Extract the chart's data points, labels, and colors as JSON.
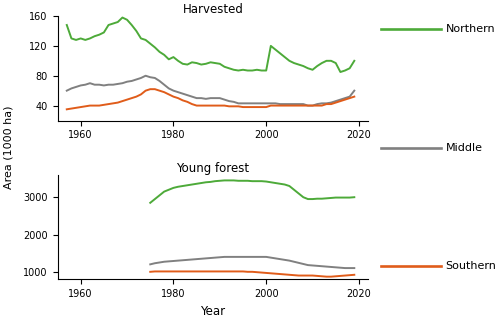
{
  "title_top": "Harvested",
  "title_bottom": "Young forest",
  "ylabel": "Area (1000 ha)",
  "xlabel": "Year",
  "legend_labels": [
    "Northern",
    "Middle",
    "Southern"
  ],
  "colors": [
    "#4daa39",
    "#808080",
    "#e05c1a"
  ],
  "linewidth": 1.4,
  "harvested_years": [
    1957,
    1958,
    1959,
    1960,
    1961,
    1962,
    1963,
    1964,
    1965,
    1966,
    1967,
    1968,
    1969,
    1970,
    1971,
    1972,
    1973,
    1974,
    1975,
    1976,
    1977,
    1978,
    1979,
    1980,
    1981,
    1982,
    1983,
    1984,
    1985,
    1986,
    1987,
    1988,
    1989,
    1990,
    1991,
    1992,
    1993,
    1994,
    1995,
    1996,
    1997,
    1998,
    1999,
    2000,
    2001,
    2002,
    2003,
    2004,
    2005,
    2006,
    2007,
    2008,
    2009,
    2010,
    2011,
    2012,
    2013,
    2014,
    2015,
    2016,
    2017,
    2018,
    2019
  ],
  "harvested_north": [
    148,
    130,
    128,
    130,
    128,
    130,
    133,
    135,
    138,
    148,
    150,
    152,
    158,
    155,
    148,
    140,
    130,
    128,
    123,
    118,
    112,
    108,
    102,
    105,
    100,
    96,
    95,
    98,
    97,
    95,
    96,
    98,
    97,
    96,
    92,
    90,
    88,
    87,
    88,
    87,
    87,
    88,
    87,
    87,
    120,
    115,
    110,
    105,
    100,
    97,
    95,
    93,
    90,
    88,
    93,
    97,
    100,
    100,
    97,
    85,
    87,
    90,
    100
  ],
  "harvested_middle": [
    60,
    63,
    65,
    67,
    68,
    70,
    68,
    68,
    67,
    68,
    68,
    69,
    70,
    72,
    73,
    75,
    77,
    80,
    78,
    77,
    73,
    68,
    63,
    60,
    58,
    56,
    54,
    52,
    50,
    50,
    49,
    50,
    50,
    50,
    48,
    46,
    45,
    43,
    43,
    43,
    43,
    43,
    43,
    43,
    43,
    43,
    42,
    42,
    42,
    42,
    42,
    42,
    40,
    40,
    42,
    43,
    43,
    44,
    46,
    48,
    50,
    52,
    60
  ],
  "harvested_south": [
    35,
    36,
    37,
    38,
    39,
    40,
    40,
    40,
    41,
    42,
    43,
    44,
    46,
    48,
    50,
    52,
    55,
    60,
    62,
    62,
    60,
    58,
    55,
    52,
    50,
    47,
    45,
    42,
    40,
    40,
    40,
    40,
    40,
    40,
    40,
    39,
    39,
    39,
    38,
    38,
    38,
    38,
    38,
    38,
    40,
    40,
    40,
    40,
    40,
    40,
    40,
    40,
    40,
    40,
    40,
    40,
    42,
    42,
    44,
    46,
    48,
    50,
    52
  ],
  "young_years": [
    1975,
    1976,
    1977,
    1978,
    1979,
    1980,
    1981,
    1982,
    1983,
    1984,
    1985,
    1986,
    1987,
    1988,
    1989,
    1990,
    1991,
    1992,
    1993,
    1994,
    1995,
    1996,
    1997,
    1998,
    1999,
    2000,
    2001,
    2002,
    2003,
    2004,
    2005,
    2006,
    2007,
    2008,
    2009,
    2010,
    2011,
    2012,
    2013,
    2014,
    2015,
    2016,
    2017,
    2018,
    2019
  ],
  "young_north": [
    2850,
    2950,
    3050,
    3150,
    3200,
    3250,
    3280,
    3300,
    3320,
    3340,
    3360,
    3380,
    3400,
    3410,
    3430,
    3440,
    3450,
    3450,
    3450,
    3440,
    3440,
    3440,
    3430,
    3430,
    3430,
    3420,
    3400,
    3380,
    3360,
    3340,
    3300,
    3200,
    3100,
    3000,
    2950,
    2950,
    2960,
    2960,
    2970,
    2980,
    2990,
    2990,
    2990,
    2990,
    3000
  ],
  "young_middle": [
    1200,
    1230,
    1250,
    1270,
    1280,
    1290,
    1300,
    1310,
    1320,
    1330,
    1340,
    1350,
    1360,
    1370,
    1380,
    1390,
    1400,
    1400,
    1400,
    1400,
    1400,
    1400,
    1400,
    1400,
    1400,
    1400,
    1380,
    1360,
    1340,
    1320,
    1300,
    1270,
    1240,
    1210,
    1180,
    1170,
    1160,
    1150,
    1140,
    1130,
    1120,
    1110,
    1100,
    1100,
    1100
  ],
  "young_south": [
    1000,
    1010,
    1010,
    1010,
    1010,
    1010,
    1010,
    1010,
    1010,
    1010,
    1010,
    1010,
    1010,
    1010,
    1010,
    1010,
    1010,
    1010,
    1010,
    1010,
    1010,
    1000,
    1000,
    990,
    980,
    970,
    960,
    950,
    940,
    930,
    920,
    910,
    900,
    900,
    900,
    900,
    890,
    880,
    870,
    870,
    880,
    890,
    900,
    910,
    920
  ],
  "harvested_ylim": [
    20,
    160
  ],
  "harvested_yticks": [
    40,
    80,
    120,
    160
  ],
  "young_ylim": [
    800,
    3600
  ],
  "young_yticks": [
    1000,
    2000,
    3000
  ],
  "xlim": [
    1955,
    2022
  ],
  "xticks": [
    1960,
    1980,
    2000,
    2020
  ]
}
